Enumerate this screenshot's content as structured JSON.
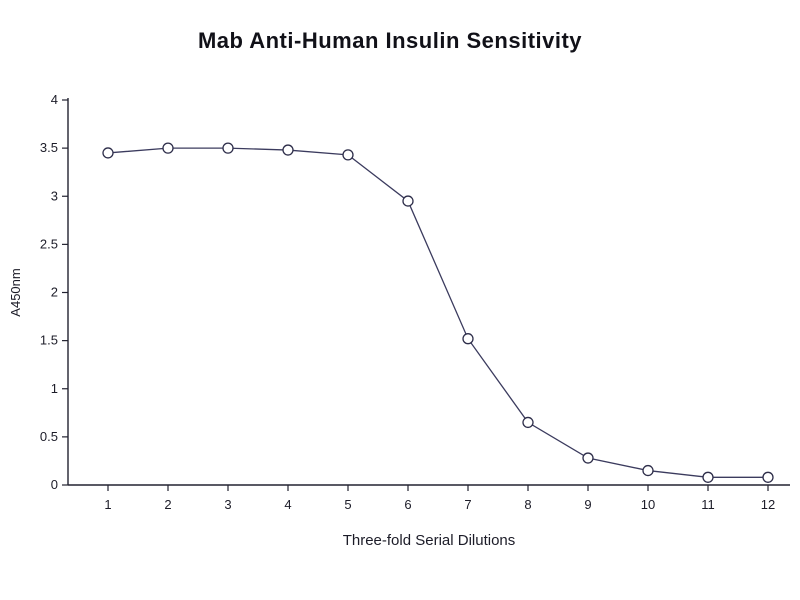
{
  "chart_data": {
    "type": "line",
    "title": "Mab Anti-Human Insulin Sensitivity",
    "xlabel": "Three-fold Serial Dilutions",
    "ylabel": "A450nm",
    "x": [
      1,
      2,
      3,
      4,
      5,
      6,
      7,
      8,
      9,
      10,
      11,
      12
    ],
    "y": [
      3.45,
      3.5,
      3.5,
      3.48,
      3.43,
      2.95,
      1.52,
      0.65,
      0.28,
      0.15,
      0.08,
      0.08
    ],
    "x_tick_labels": [
      "1",
      "2",
      "3",
      "4",
      "5",
      "6",
      "7",
      "8",
      "9",
      "10",
      "11",
      "12"
    ],
    "y_ticks": [
      0,
      0.5,
      1,
      1.5,
      2,
      2.5,
      3,
      3.5,
      4
    ],
    "ylim": [
      0,
      4
    ],
    "xlim_categories": 12,
    "grid": false,
    "legend": "none",
    "marker": "open-circle",
    "colors": {
      "line": "#3b3b5e",
      "marker_fill": "#ffffff",
      "marker_stroke": "#2e2e4a",
      "axis": "#222230",
      "text": "#1c1c28",
      "background": "#ffffff"
    }
  }
}
